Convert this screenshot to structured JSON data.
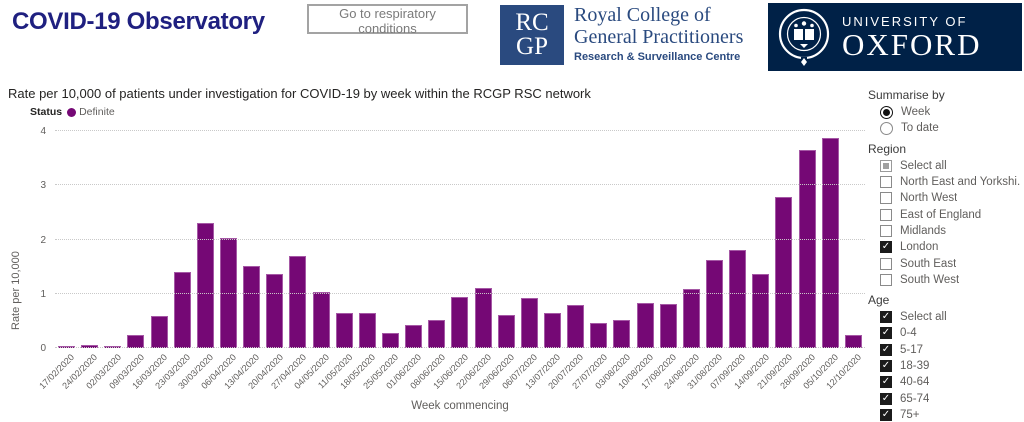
{
  "header": {
    "title": "COVID-19 Observatory",
    "nav_button_label": "Go to respiratory conditions",
    "rcgp_logo": {
      "abbr_top": "RC",
      "abbr_bottom": "GP",
      "name_line1": "Royal College of",
      "name_line2": "General Practitioners",
      "subtitle": "Research & Surveillance Centre"
    },
    "oxford_logo": {
      "line1": "UNIVERSITY OF",
      "line2": "OXFORD"
    }
  },
  "chart": {
    "title": "Rate per 10,000 of patients under investigation for COVID-19 by week within the RCGP RSC network",
    "legend_label": "Status",
    "legend_series": "Definite",
    "ylabel": "Rate per 10,000",
    "xlabel": "Week commencing"
  },
  "chart_data": {
    "type": "bar",
    "title": "Rate per 10,000 of patients under investigation for COVID-19 by week within the RCGP RSC network",
    "series_name": "Definite",
    "bar_color": "#750875",
    "categories": [
      "17/02/2020",
      "24/02/2020",
      "02/03/2020",
      "09/03/2020",
      "16/03/2020",
      "23/03/2020",
      "30/03/2020",
      "06/04/2020",
      "13/04/2020",
      "20/04/2020",
      "27/04/2020",
      "04/05/2020",
      "11/05/2020",
      "18/05/2020",
      "25/05/2020",
      "01/06/2020",
      "08/06/2020",
      "15/06/2020",
      "22/06/2020",
      "29/06/2020",
      "06/07/2020",
      "13/07/2020",
      "20/07/2020",
      "27/07/2020",
      "03/08/2020",
      "10/08/2020",
      "17/08/2020",
      "24/08/2020",
      "31/08/2020",
      "07/09/2020",
      "14/09/2020",
      "21/09/2020",
      "28/09/2020",
      "05/10/2020",
      "12/10/2020"
    ],
    "values": [
      0.03,
      0.06,
      0.03,
      0.24,
      0.59,
      1.4,
      2.3,
      2.03,
      1.51,
      1.36,
      1.7,
      1.04,
      0.65,
      0.65,
      0.27,
      0.42,
      0.52,
      0.94,
      1.1,
      0.6,
      0.93,
      0.64,
      0.79,
      0.47,
      0.51,
      0.83,
      0.81,
      1.08,
      1.62,
      1.8,
      1.36,
      2.79,
      3.65,
      3.88,
      0.24
    ],
    "xlabel": "Week commencing",
    "ylabel": "Rate per 10,000",
    "ylim": [
      0,
      4
    ],
    "yticks": [
      0,
      1,
      2,
      3,
      4
    ],
    "grid": "dotted horizontal",
    "legend_position": "top-left"
  },
  "sidebar": {
    "summarise_label": "Summarise by",
    "summarise_options": [
      {
        "label": "Week",
        "selected": true
      },
      {
        "label": "To date",
        "selected": false
      }
    ],
    "region_label": "Region",
    "region_options": [
      {
        "label": "Select all",
        "state": "indeterminate"
      },
      {
        "label": "North East and Yorkshi...",
        "state": "unchecked"
      },
      {
        "label": "North West",
        "state": "unchecked"
      },
      {
        "label": "East of England",
        "state": "unchecked"
      },
      {
        "label": "Midlands",
        "state": "unchecked"
      },
      {
        "label": "London",
        "state": "checked"
      },
      {
        "label": "South East",
        "state": "unchecked"
      },
      {
        "label": "South West",
        "state": "unchecked"
      }
    ],
    "age_label": "Age",
    "age_options": [
      {
        "label": "Select all",
        "state": "checked"
      },
      {
        "label": "0-4",
        "state": "checked"
      },
      {
        "label": "5-17",
        "state": "checked"
      },
      {
        "label": "18-39",
        "state": "checked"
      },
      {
        "label": "40-64",
        "state": "checked"
      },
      {
        "label": "65-74",
        "state": "checked"
      },
      {
        "label": "75+",
        "state": "checked"
      }
    ]
  },
  "colors": {
    "bar_purple": "#750875",
    "title_navy": "#1F2080",
    "rcgp_blue": "#2A4A7F",
    "oxford_navy": "#002147",
    "text_gray": "#605E5C"
  }
}
